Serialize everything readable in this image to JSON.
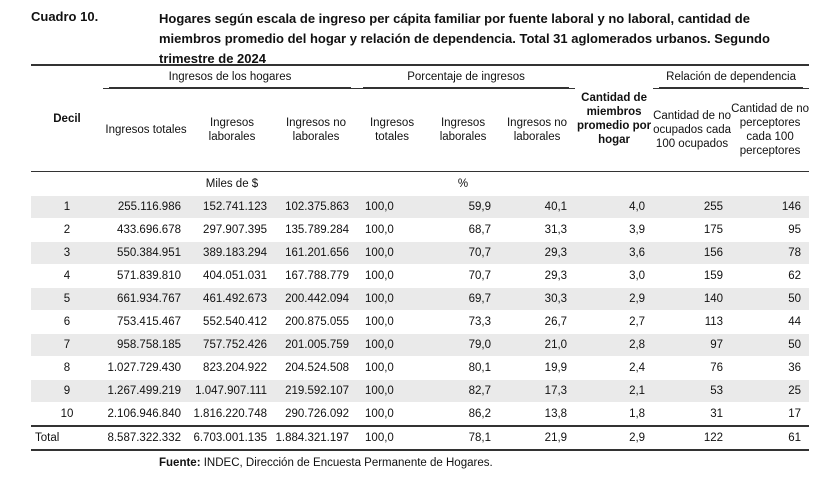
{
  "document": {
    "cuadro_label": "Cuadro 10.",
    "title": "Hogares según escala de ingreso per cápita familiar por fuente laboral y no laboral, cantidad de miembros promedio del hogar y relación de dependencia. Total 31 aglomerados urbanos. Segundo trimestre de 2024",
    "source_label": "Fuente:",
    "source_text": "INDEC, Dirección de Encuesta Permanente de Hogares."
  },
  "table": {
    "group_headers": {
      "ingresos": "Ingresos de los hogares",
      "porcentaje": "Porcentaje de ingresos",
      "relacion": "Relación de dependencia"
    },
    "col_headers": {
      "decil": "Decil",
      "ing_totales": "Ingresos totales",
      "ing_laborales": "Ingresos laborales",
      "ing_no_laborales": "Ingresos no laborales",
      "pct_totales": "Ingresos totales",
      "pct_laborales": "Ingresos laborales",
      "pct_no_laborales": "Ingresos no laborales",
      "miembros": "Cantidad de miembros promedio por hogar",
      "no_ocupados": "Cantidad de no ocupados cada 100 ocupados",
      "no_perceptores": "Cantidad de no perceptores cada 100 perceptores"
    },
    "units": {
      "miles": "Miles de $",
      "pct": "%"
    },
    "rows": [
      {
        "decil": "1",
        "it": "255.116.986",
        "il": "152.741.123",
        "inl": "102.375.863",
        "pt": "100,0",
        "pl": "59,9",
        "pnl": "40,1",
        "m": "4,0",
        "no": "255",
        "np": "146"
      },
      {
        "decil": "2",
        "it": "433.696.678",
        "il": "297.907.395",
        "inl": "135.789.284",
        "pt": "100,0",
        "pl": "68,7",
        "pnl": "31,3",
        "m": "3,9",
        "no": "175",
        "np": "95"
      },
      {
        "decil": "3",
        "it": "550.384.951",
        "il": "389.183.294",
        "inl": "161.201.656",
        "pt": "100,0",
        "pl": "70,7",
        "pnl": "29,3",
        "m": "3,6",
        "no": "156",
        "np": "78"
      },
      {
        "decil": "4",
        "it": "571.839.810",
        "il": "404.051.031",
        "inl": "167.788.779",
        "pt": "100,0",
        "pl": "70,7",
        "pnl": "29,3",
        "m": "3,0",
        "no": "159",
        "np": "62"
      },
      {
        "decil": "5",
        "it": "661.934.767",
        "il": "461.492.673",
        "inl": "200.442.094",
        "pt": "100,0",
        "pl": "69,7",
        "pnl": "30,3",
        "m": "2,9",
        "no": "140",
        "np": "50"
      },
      {
        "decil": "6",
        "it": "753.415.467",
        "il": "552.540.412",
        "inl": "200.875.055",
        "pt": "100,0",
        "pl": "73,3",
        "pnl": "26,7",
        "m": "2,7",
        "no": "113",
        "np": "44"
      },
      {
        "decil": "7",
        "it": "958.758.185",
        "il": "757.752.426",
        "inl": "201.005.759",
        "pt": "100,0",
        "pl": "79,0",
        "pnl": "21,0",
        "m": "2,8",
        "no": "97",
        "np": "50"
      },
      {
        "decil": "8",
        "it": "1.027.729.430",
        "il": "823.204.922",
        "inl": "204.524.508",
        "pt": "100,0",
        "pl": "80,1",
        "pnl": "19,9",
        "m": "2,4",
        "no": "76",
        "np": "36"
      },
      {
        "decil": "9",
        "it": "1.267.499.219",
        "il": "1.047.907.111",
        "inl": "219.592.107",
        "pt": "100,0",
        "pl": "82,7",
        "pnl": "17,3",
        "m": "2,1",
        "no": "53",
        "np": "25"
      },
      {
        "decil": "10",
        "it": "2.106.946.840",
        "il": "1.816.220.748",
        "inl": "290.726.092",
        "pt": "100,0",
        "pl": "86,2",
        "pnl": "13,8",
        "m": "1,8",
        "no": "31",
        "np": "17"
      }
    ],
    "total": {
      "decil": "Total",
      "it": "8.587.322.332",
      "il": "6.703.001.135",
      "inl": "1.884.321.197",
      "pt": "100,0",
      "pl": "78,1",
      "pnl": "21,9",
      "m": "2,9",
      "no": "122",
      "np": "61"
    }
  }
}
